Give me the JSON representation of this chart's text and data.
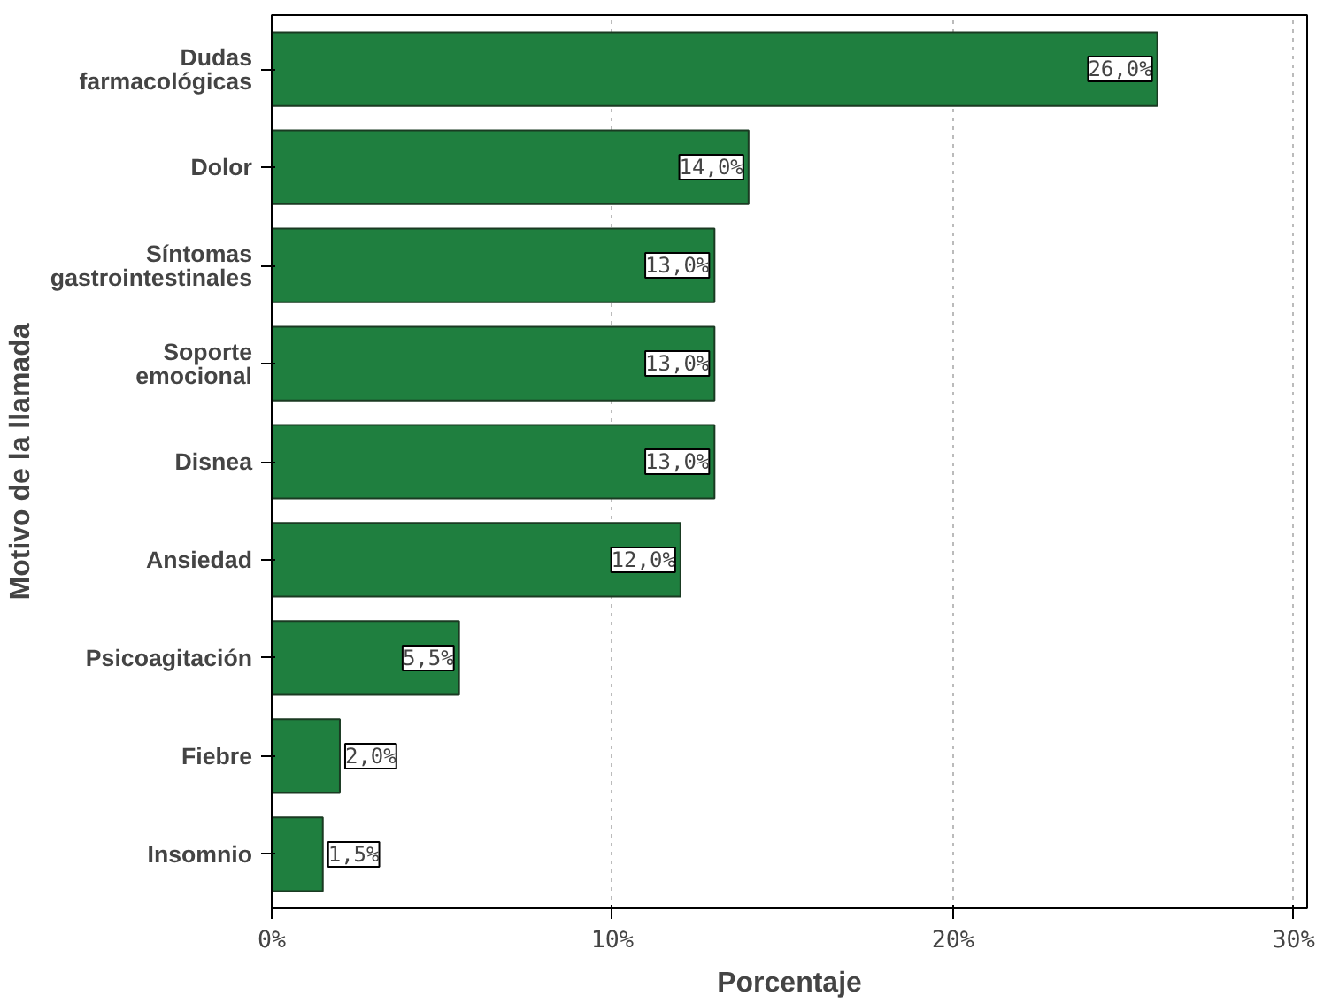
{
  "chart_data": {
    "type": "bar",
    "orientation": "horizontal",
    "xlabel": "Porcentaje",
    "ylabel": "Motivo de la llamada",
    "categories": [
      "Dudas\nfarmacológicas",
      "Dolor",
      "Síntomas\ngastrointestinales",
      "Soporte\nemocional",
      "Disnea",
      "Ansiedad",
      "Psicoagitación",
      "Fiebre",
      "Insomnio"
    ],
    "values": [
      26.0,
      14.0,
      13.0,
      13.0,
      13.0,
      12.0,
      5.5,
      2.0,
      1.5
    ],
    "value_labels": [
      "26,0%",
      "14,0%",
      "13,0%",
      "13,0%",
      "13,0%",
      "12,0%",
      "5,5%",
      "2,0%",
      "1,5%"
    ],
    "color": "#1f7f3f",
    "xlim": [
      0,
      30.4
    ],
    "xticks": [
      {
        "value": 0,
        "label": "0%"
      },
      {
        "value": 10,
        "label": "10%"
      },
      {
        "value": 20,
        "label": "20%"
      },
      {
        "value": 30,
        "label": "30%"
      }
    ],
    "grid": "x"
  }
}
